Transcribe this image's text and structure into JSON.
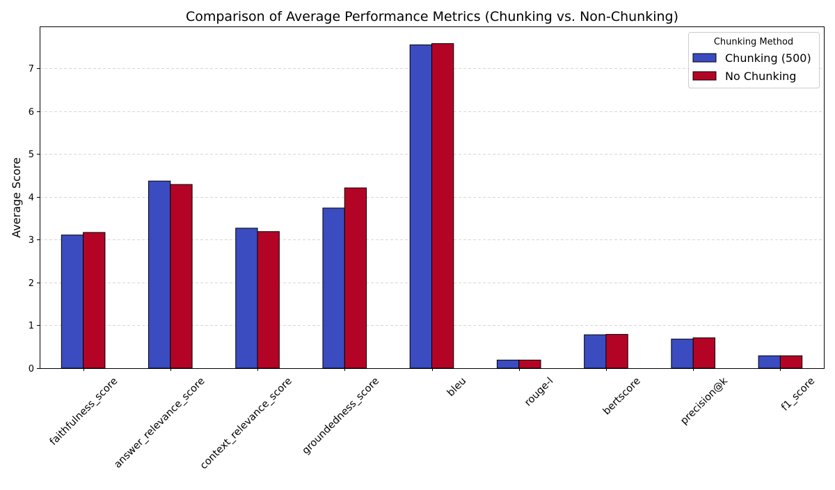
{
  "chart_data": {
    "type": "bar",
    "title": "Comparison of Average Performance Metrics (Chunking vs. Non-Chunking)",
    "xlabel": "",
    "ylabel": "Average Score",
    "ylim": [
      0,
      7.98
    ],
    "yticks": [
      0,
      1,
      2,
      3,
      4,
      5,
      6,
      7
    ],
    "grid": "y-dashed",
    "legend": {
      "title": "Chunking Method",
      "placement": "top-right"
    },
    "categories": [
      "faithfulness_score",
      "answer_relevance_score",
      "context_relevance_score",
      "groundedness_score",
      "bleu",
      "rouge-l",
      "bertscore",
      "precision@k",
      "f1_score"
    ],
    "series": [
      {
        "name": "Chunking (500)",
        "color": "#3b4cc0",
        "values": [
          3.11,
          4.37,
          3.27,
          3.74,
          7.55,
          0.19,
          0.78,
          0.68,
          0.29
        ]
      },
      {
        "name": "No Chunking",
        "color": "#b40426",
        "values": [
          3.17,
          4.29,
          3.19,
          4.21,
          7.58,
          0.19,
          0.79,
          0.71,
          0.29
        ]
      }
    ]
  }
}
